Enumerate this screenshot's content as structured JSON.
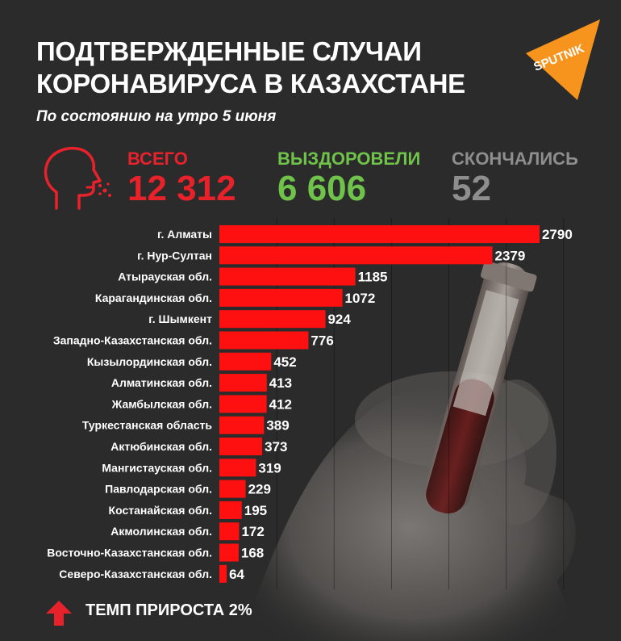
{
  "header": {
    "title_line1": "ПОДТВЕРЖДЕННЫЕ СЛУЧАИ",
    "title_line2": "КОРОНАВИРУСА В КАЗАХСТАНЕ",
    "subtitle": "По состоянию на утро 5 июня"
  },
  "logo": {
    "text": "SPUTNIK",
    "color": "#f7941d"
  },
  "stats": {
    "total": {
      "label": "ВСЕГО",
      "value": "12 312",
      "color": "#e8222a"
    },
    "recovered": {
      "label": "ВЫЗДОРОВЕЛИ",
      "value": "6 606",
      "color": "#6fc24a"
    },
    "died": {
      "label": "СКОНЧАЛИСЬ",
      "value": "52",
      "color": "#8e8e8e"
    }
  },
  "icons": {
    "head": "coughing-head-icon",
    "arrow": "arrow-up-icon"
  },
  "footer": {
    "text": "ТЕМП ПРИРОСТА 2%"
  },
  "chart_data": {
    "type": "bar",
    "orientation": "horizontal",
    "bar_color": "#ff1010",
    "categories": [
      "г. Алматы",
      "г. Нур-Султан",
      "Атырауская обл.",
      "Карагандинская обл.",
      "г. Шымкент",
      "Западно-Казахстанская обл.",
      "Кызылординская обл.",
      "Алматинская обл.",
      "Жамбылская обл.",
      "Туркестанская область",
      "Актюбинская обл.",
      "Мангистауская обл.",
      "Павлодарская обл.",
      "Костанайская обл.",
      "Акмолинская обл.",
      "Восточно-Казахстанская обл.",
      "Северо-Казахстанская обл."
    ],
    "values": [
      2790,
      2379,
      1185,
      1072,
      924,
      776,
      452,
      413,
      412,
      389,
      373,
      319,
      229,
      195,
      172,
      168,
      64
    ],
    "data_labels": [
      "2790",
      "2379",
      "1185",
      "1072",
      "924",
      "776",
      "452",
      "413",
      "412",
      "389",
      "373",
      "319",
      "229",
      "195",
      "172",
      "168",
      "64"
    ],
    "xlim": [
      0,
      3500
    ],
    "grid": true
  }
}
